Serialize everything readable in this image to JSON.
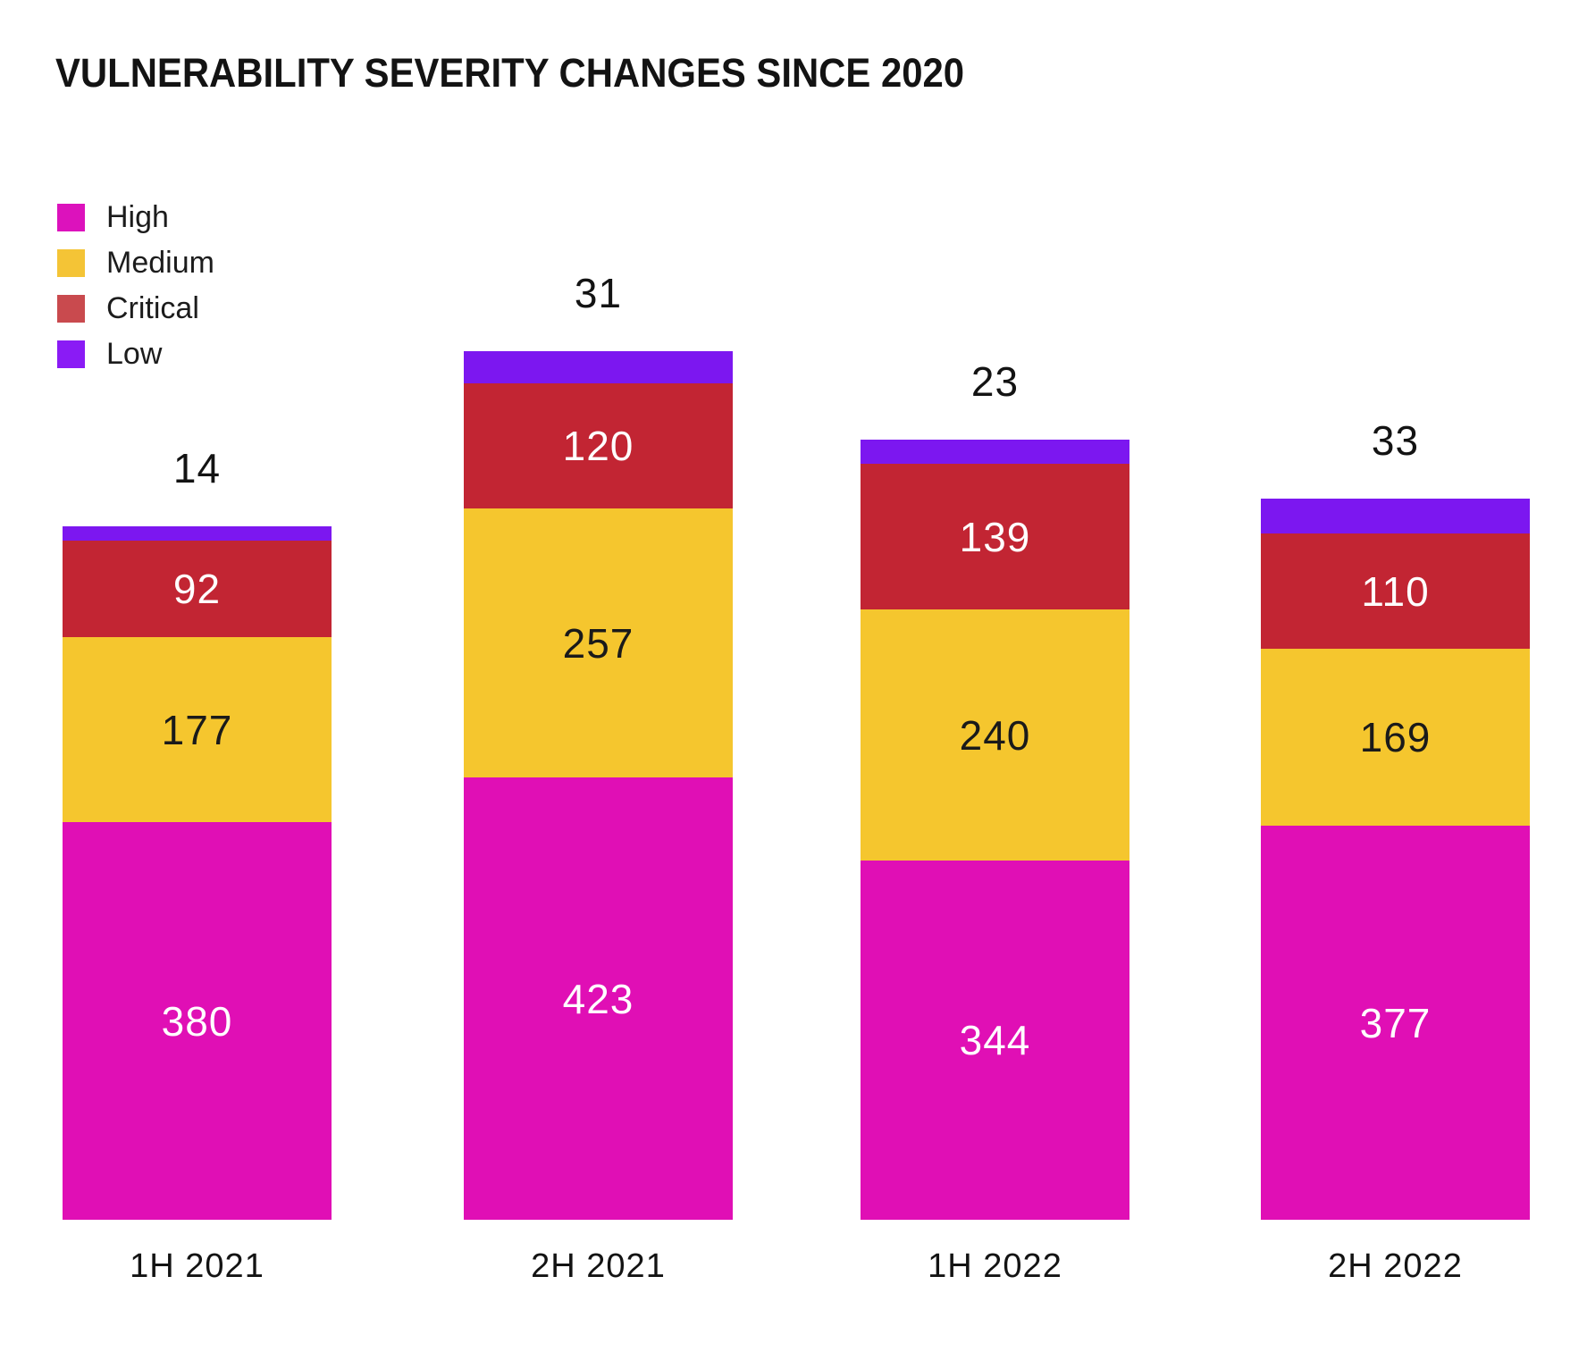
{
  "title": "VULNERABILITY SEVERITY CHANGES SINCE 2020",
  "legend": {
    "items": [
      {
        "label": "High",
        "color": "#DC12BC"
      },
      {
        "label": "Medium",
        "color": "#F4C436"
      },
      {
        "label": "Critical",
        "color": "#C94A4E"
      },
      {
        "label": "Low",
        "color": "#8A1BF5"
      }
    ]
  },
  "chart_data": {
    "type": "bar",
    "stacked": true,
    "title": "VULNERABILITY SEVERITY CHANGES SINCE 2020",
    "categories": [
      "1H 2021",
      "2H 2021",
      "1H 2022",
      "2H 2022"
    ],
    "series": [
      {
        "name": "High",
        "color": "#E00FB5",
        "values": [
          380,
          423,
          344,
          377
        ]
      },
      {
        "name": "Medium",
        "color": "#F5C62E",
        "values": [
          177,
          257,
          240,
          169
        ]
      },
      {
        "name": "Critical",
        "color": "#C22533",
        "values": [
          92,
          120,
          139,
          110
        ]
      },
      {
        "name": "Low",
        "color": "#7C17F0",
        "values": [
          14,
          31,
          23,
          33
        ]
      }
    ],
    "stack_order_bottom_to_top": [
      "High",
      "Medium",
      "Critical",
      "Low"
    ],
    "low_values_shown_above_bars": [
      14,
      31,
      23,
      33
    ],
    "bar_totals": [
      663,
      831,
      746,
      689
    ],
    "xlabel": "",
    "ylabel": "",
    "grid": false,
    "axes_hidden": true,
    "legend_position": "top-left"
  }
}
